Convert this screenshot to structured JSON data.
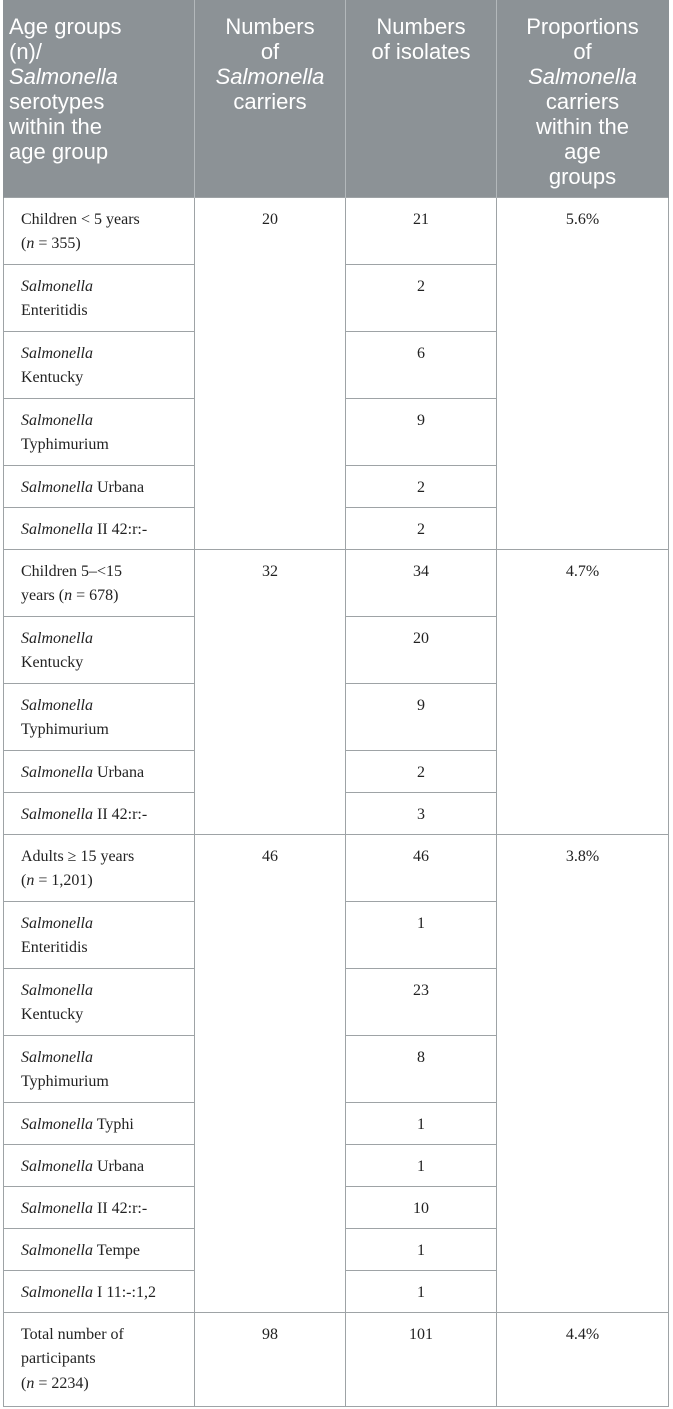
{
  "headers": {
    "col1_line1": "Age groups",
    "col1_line2": "(n)/",
    "col1_italic": "Salmonella",
    "col1_line3": "serotypes",
    "col1_line4": "within the",
    "col1_line5": "age group",
    "col2_line1": "Numbers",
    "col2_line2": "of",
    "col2_italic": "Salmonella",
    "col2_line3": "carriers",
    "col3_line1": "Numbers",
    "col3_line2": "of isolates",
    "col4_line1": "Proportions",
    "col4_line2": "of",
    "col4_italic": "Salmonella",
    "col4_line3": "carriers",
    "col4_line4": "within the",
    "col4_line5": "age",
    "col4_line6": "groups"
  },
  "genus": "Salmonella",
  "groups": [
    {
      "label_main": "Children < 5 years",
      "label_pre": "(",
      "label_n": "n",
      "label_post": " = 355)",
      "carriers": "20",
      "isolates": "21",
      "proportion": "5.6%",
      "serotypes": [
        {
          "name": "Enteritidis",
          "isolates": "2"
        },
        {
          "name": "Kentucky",
          "isolates": "6"
        },
        {
          "name": "Typhimurium",
          "isolates": "9"
        },
        {
          "name": "Urbana",
          "isolates": "2"
        },
        {
          "name": "II 42:r:-",
          "isolates": "2"
        }
      ]
    },
    {
      "label_main": "Children 5–<15",
      "label_pre": "years (",
      "label_n": "n",
      "label_post": " = 678)",
      "carriers": "32",
      "isolates": "34",
      "proportion": "4.7%",
      "serotypes": [
        {
          "name": "Kentucky",
          "isolates": "20"
        },
        {
          "name": "Typhimurium",
          "isolates": "9"
        },
        {
          "name": "Urbana",
          "isolates": "2"
        },
        {
          "name": "II 42:r:-",
          "isolates": "3"
        }
      ]
    },
    {
      "label_main": "Adults ≥ 15 years",
      "label_pre": "(",
      "label_n": "n",
      "label_post": " = 1,201)",
      "carriers": "46",
      "isolates": "46",
      "proportion": "3.8%",
      "serotypes": [
        {
          "name": "Enteritidis",
          "isolates": "1"
        },
        {
          "name": "Kentucky",
          "isolates": "23"
        },
        {
          "name": "Typhimurium",
          "isolates": "8"
        },
        {
          "name": "Typhi",
          "isolates": "1"
        },
        {
          "name": "Urbana",
          "isolates": "1"
        },
        {
          "name": "II 42:r:-",
          "isolates": "10"
        },
        {
          "name": "Tempe",
          "isolates": "1"
        },
        {
          "name": "I 11:-:1,2",
          "isolates": "1"
        }
      ]
    }
  ],
  "total": {
    "label_line1": "Total number of",
    "label_line2": "participants",
    "label_pre": "(",
    "label_n": "n",
    "label_post": " = 2234)",
    "carriers": "98",
    "isolates": "101",
    "proportion": "4.4%"
  }
}
